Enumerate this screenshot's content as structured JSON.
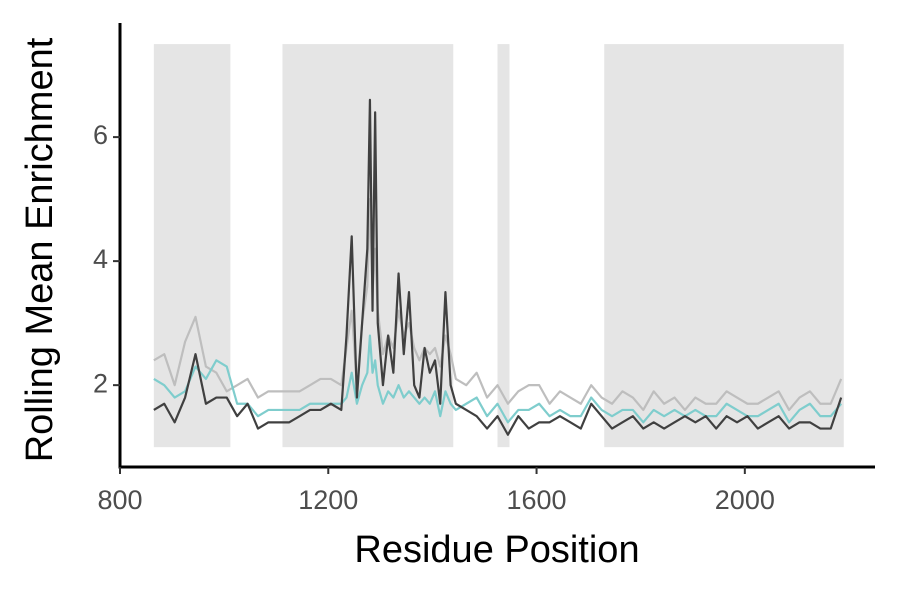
{
  "chart_data": {
    "type": "line",
    "x_label": "Residue Position",
    "y_label": "Rolling Mean Enrichment",
    "xlim": [
      800,
      2250
    ],
    "ylim": [
      0.68,
      7.84
    ],
    "xticks": [
      800,
      1200,
      1600,
      2000
    ],
    "yticks": [
      2,
      4,
      6
    ],
    "regions": [
      {
        "x0": 865,
        "x1": 1012,
        "y0": 1,
        "y1": 7.5,
        "color": "#e5e5e5"
      },
      {
        "x0": 1112,
        "x1": 1440,
        "y0": 1,
        "y1": 7.5,
        "color": "#e5e5e5"
      },
      {
        "x0": 1525,
        "x1": 1548,
        "y0": 1,
        "y1": 7.5,
        "color": "#e5e5e5"
      },
      {
        "x0": 1730,
        "x1": 2190,
        "y0": 1,
        "y1": 7.5,
        "color": "#e5e5e5"
      }
    ],
    "x": [
      865,
      885,
      905,
      925,
      945,
      965,
      985,
      1005,
      1025,
      1045,
      1065,
      1085,
      1105,
      1125,
      1145,
      1165,
      1185,
      1205,
      1225,
      1235,
      1245,
      1255,
      1265,
      1275,
      1280,
      1285,
      1290,
      1295,
      1305,
      1315,
      1325,
      1335,
      1345,
      1355,
      1365,
      1375,
      1385,
      1395,
      1405,
      1415,
      1425,
      1435,
      1445,
      1465,
      1485,
      1505,
      1525,
      1545,
      1565,
      1585,
      1605,
      1625,
      1645,
      1665,
      1685,
      1705,
      1725,
      1745,
      1765,
      1785,
      1805,
      1825,
      1845,
      1865,
      1885,
      1905,
      1925,
      1945,
      1965,
      1985,
      2005,
      2025,
      2045,
      2065,
      2085,
      2105,
      2125,
      2145,
      2165,
      2185
    ],
    "series": [
      {
        "color": "#bebebe",
        "values": [
          2.4,
          2.5,
          2.0,
          2.7,
          3.1,
          2.3,
          2.2,
          1.9,
          2.0,
          2.1,
          1.8,
          1.9,
          1.9,
          1.9,
          1.9,
          2.0,
          2.1,
          2.1,
          2.0,
          2.6,
          3.2,
          2.0,
          3.0,
          3.6,
          5.0,
          3.5,
          4.2,
          3.2,
          2.5,
          2.8,
          2.6,
          3.2,
          2.8,
          3.0,
          2.6,
          2.4,
          2.6,
          2.5,
          2.6,
          2.3,
          2.8,
          2.5,
          2.1,
          2.0,
          2.2,
          1.8,
          2.0,
          1.7,
          1.9,
          2.0,
          2.0,
          1.7,
          1.9,
          1.8,
          1.7,
          2.0,
          1.8,
          1.7,
          1.9,
          1.8,
          1.6,
          1.9,
          1.7,
          1.8,
          1.6,
          1.8,
          1.7,
          1.7,
          1.9,
          1.8,
          1.7,
          1.7,
          1.8,
          1.9,
          1.6,
          1.8,
          1.9,
          1.7,
          1.7,
          2.1
        ]
      },
      {
        "color": "#7fcdcd",
        "values": [
          2.1,
          2.0,
          1.8,
          1.9,
          2.3,
          2.1,
          2.4,
          2.3,
          1.7,
          1.7,
          1.5,
          1.6,
          1.6,
          1.6,
          1.6,
          1.7,
          1.7,
          1.7,
          1.7,
          1.8,
          2.2,
          1.7,
          2.0,
          2.2,
          2.8,
          2.2,
          2.4,
          2.0,
          1.7,
          1.9,
          1.8,
          2.0,
          1.8,
          1.9,
          1.8,
          1.7,
          1.8,
          1.7,
          1.9,
          1.5,
          1.9,
          1.7,
          1.6,
          1.7,
          1.8,
          1.5,
          1.7,
          1.4,
          1.6,
          1.6,
          1.7,
          1.5,
          1.6,
          1.5,
          1.5,
          1.8,
          1.6,
          1.5,
          1.6,
          1.6,
          1.4,
          1.6,
          1.5,
          1.6,
          1.5,
          1.6,
          1.5,
          1.5,
          1.7,
          1.6,
          1.5,
          1.5,
          1.6,
          1.7,
          1.4,
          1.6,
          1.7,
          1.5,
          1.5,
          1.7
        ]
      },
      {
        "color": "#404040",
        "values": [
          1.6,
          1.7,
          1.4,
          1.8,
          2.5,
          1.7,
          1.8,
          1.8,
          1.5,
          1.7,
          1.3,
          1.4,
          1.4,
          1.4,
          1.5,
          1.6,
          1.6,
          1.7,
          1.6,
          2.8,
          4.4,
          1.8,
          3.0,
          4.2,
          6.6,
          3.2,
          6.4,
          3.0,
          2.0,
          2.8,
          2.2,
          3.8,
          2.5,
          3.5,
          2.0,
          1.8,
          2.6,
          2.2,
          2.4,
          1.7,
          3.5,
          2.0,
          1.7,
          1.6,
          1.5,
          1.3,
          1.5,
          1.2,
          1.5,
          1.3,
          1.4,
          1.4,
          1.5,
          1.4,
          1.3,
          1.7,
          1.5,
          1.3,
          1.4,
          1.5,
          1.3,
          1.4,
          1.3,
          1.4,
          1.5,
          1.4,
          1.5,
          1.3,
          1.5,
          1.4,
          1.5,
          1.3,
          1.4,
          1.5,
          1.3,
          1.4,
          1.4,
          1.3,
          1.3,
          1.8
        ]
      }
    ]
  }
}
